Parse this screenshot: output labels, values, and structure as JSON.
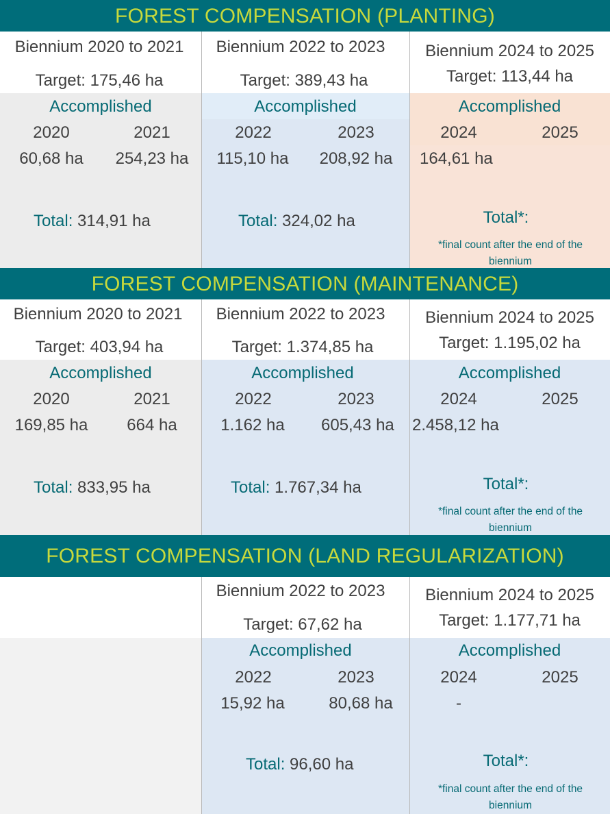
{
  "sections": [
    {
      "title": "FOREST COMPENSATION (PLANTING)",
      "columns": [
        {
          "biennium": "Biennium 2020 to 2021",
          "target": "Target: 175,46 ha",
          "accomplished": "Accomplished",
          "year1": "2020",
          "year2": "2021",
          "value1": "60,68 ha",
          "value2": "254,23 ha",
          "total_label": "Total:",
          "total_value": "314,91 ha"
        },
        {
          "biennium": "Biennium 2022 to 2023",
          "target": "Target: 389,43 ha",
          "accomplished": "Accomplished",
          "year1": "2022",
          "year2": "2023",
          "value1": "115,10 ha",
          "value2": "208,92 ha",
          "total_label": "Total:",
          "total_value": "324,02 ha"
        },
        {
          "biennium": "Biennium 2024 to 2025",
          "target": "Target: 113,44 ha",
          "accomplished": "Accomplished",
          "year1": "2024",
          "year2": "2025",
          "value1": "164,61 ha",
          "total_label": "Total*:",
          "note": "*final count after the end of the biennium"
        }
      ]
    },
    {
      "title": "FOREST COMPENSATION (MAINTENANCE)",
      "columns": [
        {
          "biennium": "Biennium 2020 to 2021",
          "target": "Target: 403,94 ha",
          "accomplished": "Accomplished",
          "year1": "2020",
          "year2": "2021",
          "value1": "169,85 ha",
          "value2": "664 ha",
          "total_label": "Total:",
          "total_value": "833,95 ha"
        },
        {
          "biennium": "Biennium 2022 to 2023",
          "target": "Target: 1.374,85 ha",
          "accomplished": "Accomplished",
          "year1": "2022",
          "year2": "2023",
          "value1": "1.162 ha",
          "value2": "605,43 ha",
          "total_label": "Total:",
          "total_value": "1.767,34 ha"
        },
        {
          "biennium": "Biennium 2024 to 2025",
          "target": "Target: 1.195,02 ha",
          "accomplished": "Accomplished",
          "year1": "2024",
          "year2": "2025",
          "value1": "2.458,12 ha",
          "total_label": "Total*:",
          "note": "*final count after the end of the biennium"
        }
      ]
    },
    {
      "title": "FOREST COMPENSATION (LAND REGULARIZATION)",
      "columns": [
        {},
        {
          "biennium": "Biennium 2022 to 2023",
          "target": "Target: 67,62 ha",
          "accomplished": "Accomplished",
          "year1": "2022",
          "year2": "2023",
          "value1": "15,92 ha",
          "value2": "80,68 ha",
          "total_label": "Total:",
          "total_value": "96,60 ha"
        },
        {
          "biennium": "Biennium 2024 to 2025",
          "target": "Target: 1.177,71 ha",
          "accomplished": "Accomplished",
          "year1": "2024",
          "year2": "2025",
          "value1": "-",
          "total_label": "Total*:",
          "note": "*final count after the end of the biennium"
        }
      ]
    }
  ],
  "colors": {
    "banner_bg": "#006d7a",
    "banner_text": "#c7d93c",
    "teal_text": "#066a74",
    "grey_fill": "#ececec",
    "blue_fill": "#dde7f3",
    "peach_fill": "#f9e3d7"
  }
}
